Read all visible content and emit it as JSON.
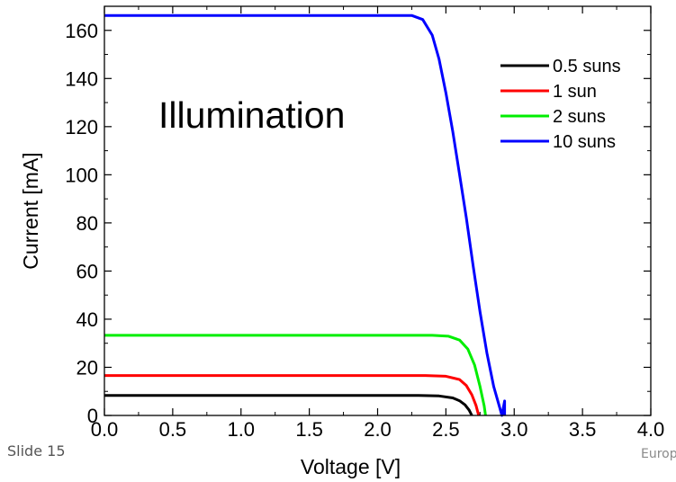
{
  "footer": {
    "slide": "Slide 15",
    "partial_text": "Europe"
  },
  "chart_data": {
    "type": "line",
    "annotation": "Illumination",
    "xlabel": "Voltage [V]",
    "ylabel": "Current [mA]",
    "xlim": [
      0,
      4
    ],
    "ylim": [
      0,
      170
    ],
    "xticks": [
      "0.0",
      "0.5",
      "1.0",
      "1.5",
      "2.0",
      "2.5",
      "3.0",
      "3.5",
      "4.0"
    ],
    "yticks": [
      "0",
      "20",
      "40",
      "60",
      "80",
      "100",
      "120",
      "140",
      "160"
    ],
    "legend_position": "top-right",
    "grid": false,
    "series": [
      {
        "name": "0.5 suns",
        "color": "#000000",
        "points": [
          [
            0,
            8.3
          ],
          [
            2.3,
            8.3
          ],
          [
            2.45,
            8.1
          ],
          [
            2.55,
            7.3
          ],
          [
            2.6,
            6.1
          ],
          [
            2.64,
            4.4
          ],
          [
            2.67,
            2.2
          ],
          [
            2.69,
            0
          ]
        ]
      },
      {
        "name": "1 sun",
        "color": "#ff0000",
        "points": [
          [
            0,
            16.6
          ],
          [
            2.35,
            16.6
          ],
          [
            2.5,
            16.3
          ],
          [
            2.6,
            14.9
          ],
          [
            2.65,
            12.4
          ],
          [
            2.69,
            8.6
          ],
          [
            2.72,
            4.2
          ],
          [
            2.74,
            0
          ]
        ]
      },
      {
        "name": "2 suns",
        "color": "#00ee00",
        "points": [
          [
            0,
            33.3
          ],
          [
            2.4,
            33.3
          ],
          [
            2.52,
            32.9
          ],
          [
            2.6,
            31.3
          ],
          [
            2.66,
            27.6
          ],
          [
            2.71,
            21.0
          ],
          [
            2.75,
            12.0
          ],
          [
            2.78,
            4.0
          ],
          [
            2.79,
            0
          ]
        ]
      },
      {
        "name": "10 suns",
        "color": "#0000ff",
        "points": [
          [
            0,
            166.2
          ],
          [
            2.25,
            166.2
          ],
          [
            2.33,
            164.5
          ],
          [
            2.4,
            158.0
          ],
          [
            2.45,
            148.0
          ],
          [
            2.5,
            134.0
          ],
          [
            2.55,
            118.0
          ],
          [
            2.6,
            100.0
          ],
          [
            2.65,
            82.0
          ],
          [
            2.7,
            62.0
          ],
          [
            2.75,
            43.0
          ],
          [
            2.8,
            26.0
          ],
          [
            2.85,
            12.0
          ],
          [
            2.89,
            4.0
          ],
          [
            2.91,
            0
          ],
          [
            2.93,
            6.0
          ],
          [
            2.93,
            0
          ]
        ]
      }
    ]
  }
}
